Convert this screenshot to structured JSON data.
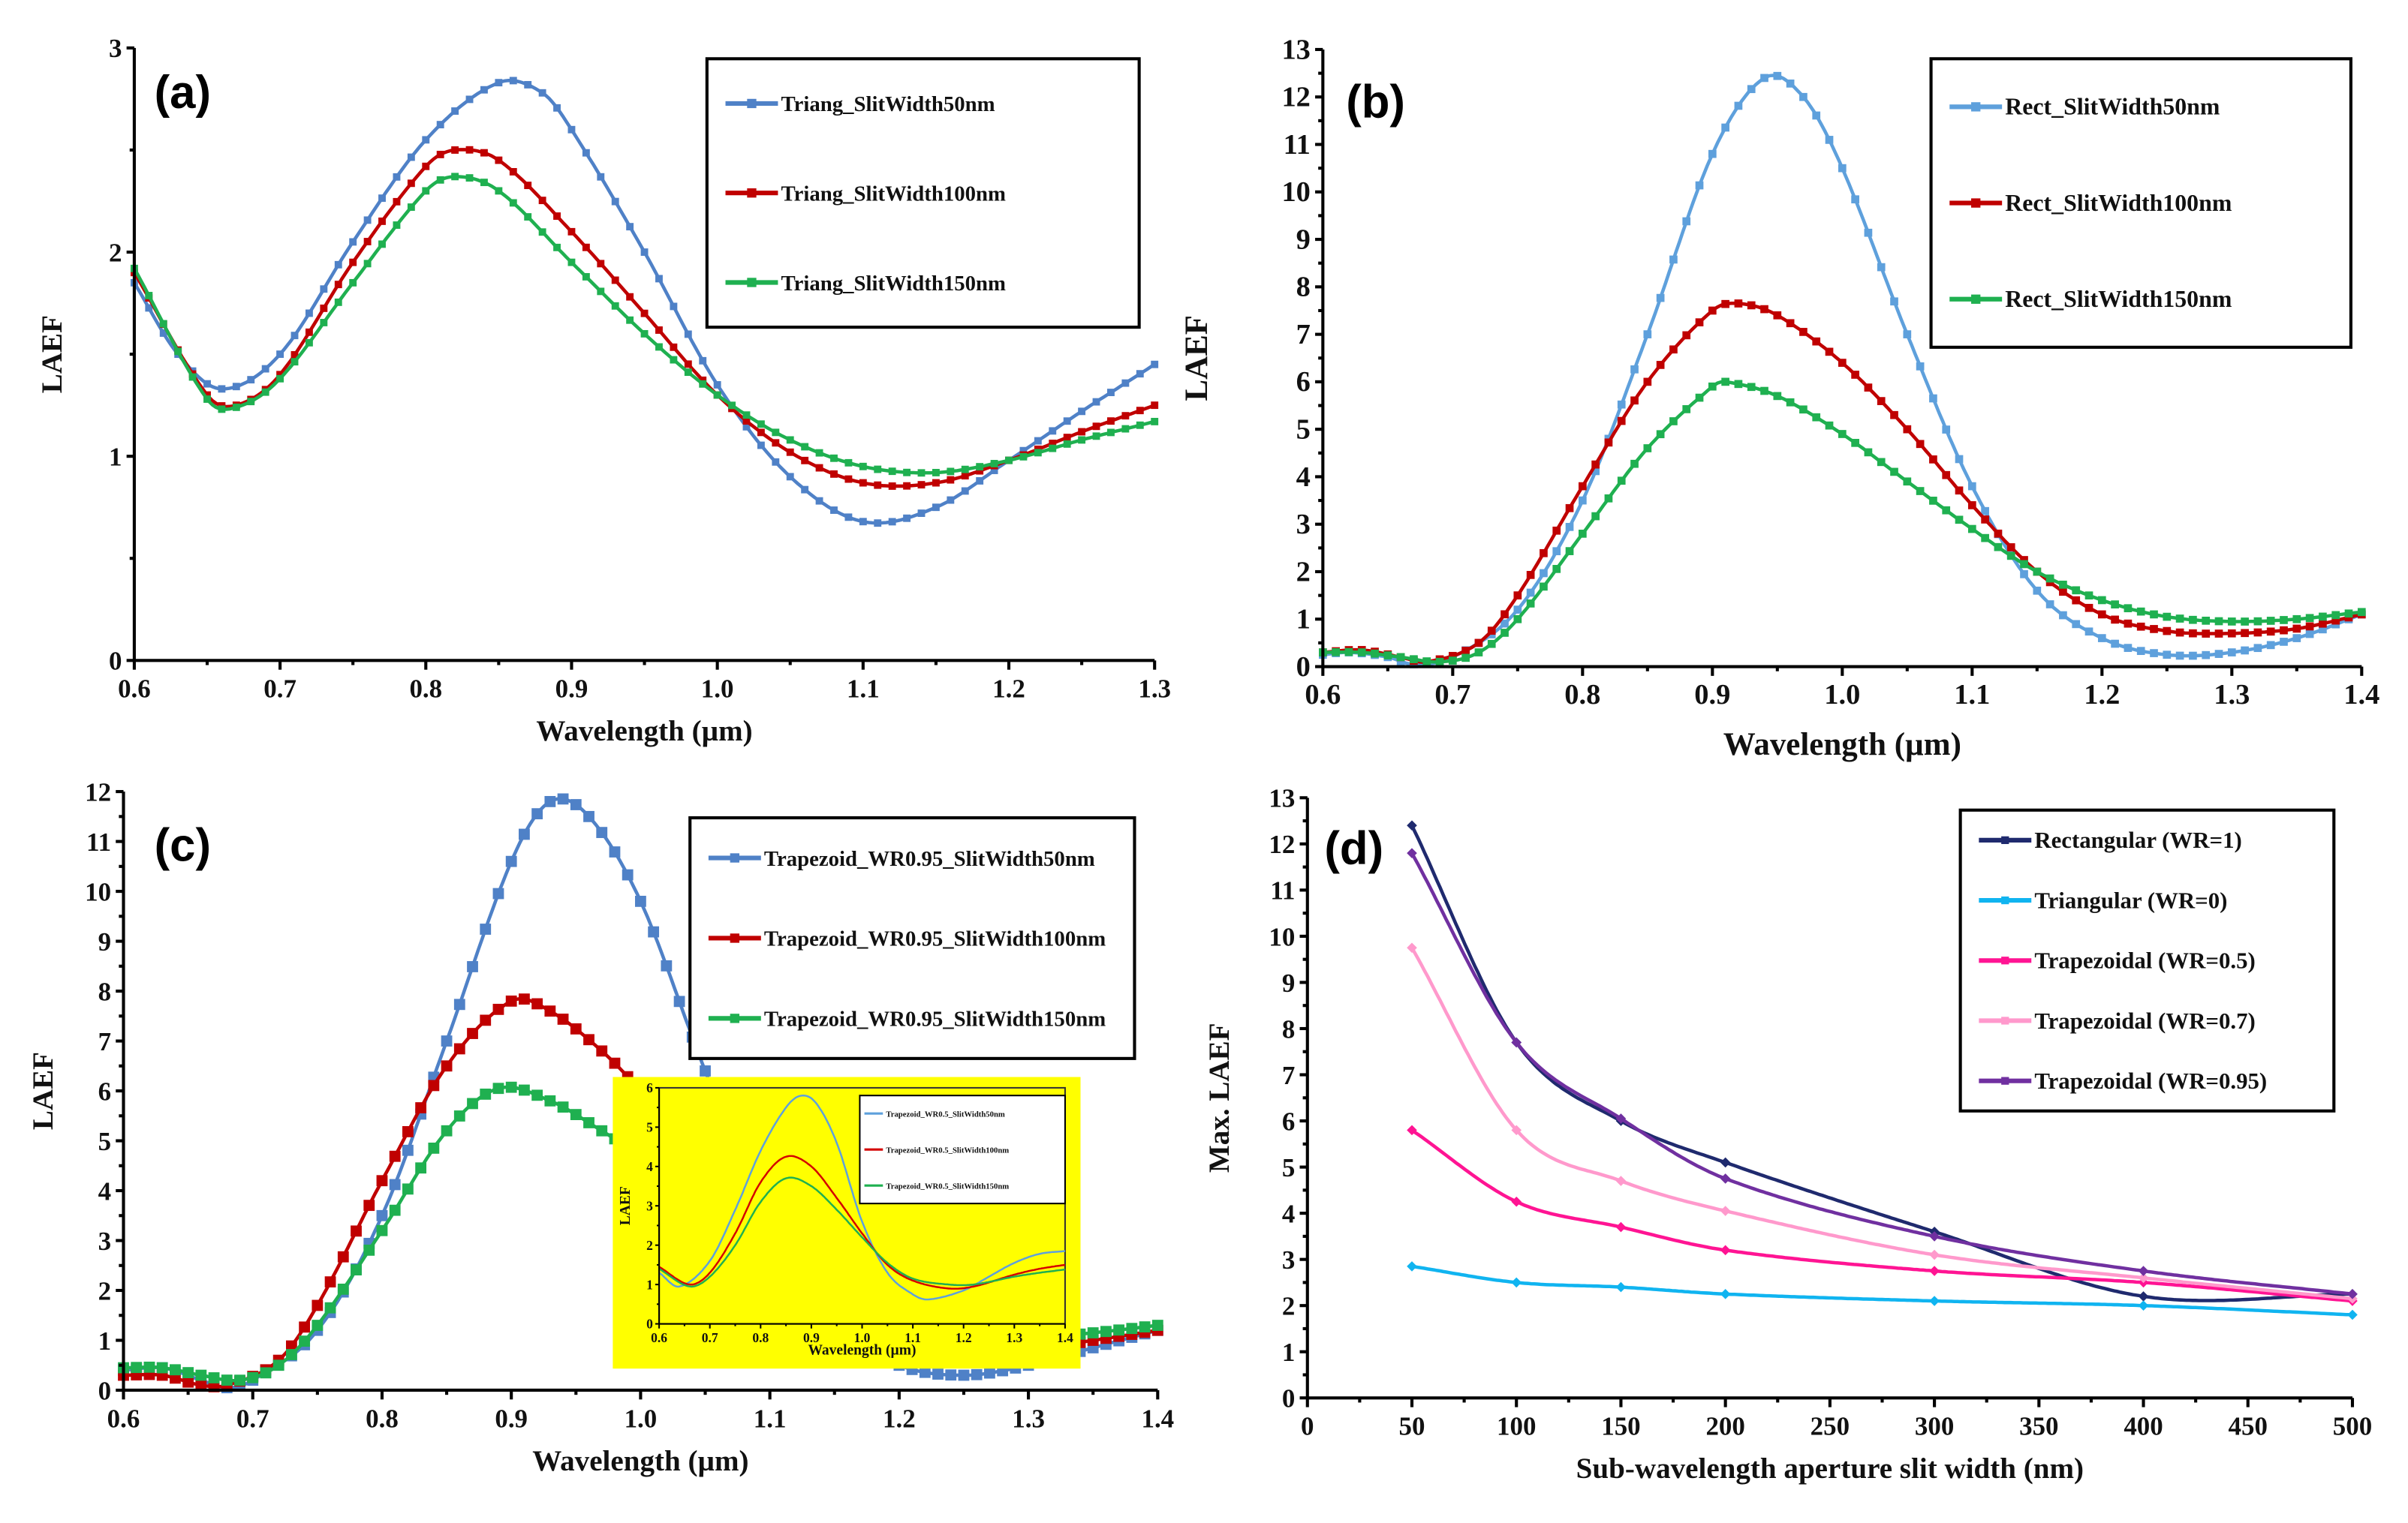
{
  "chart_data": [
    {
      "id": "a",
      "panel_label": "(a)",
      "type": "line",
      "xlabel": "Wavelength (µm)",
      "ylabel": "LAEF",
      "xlim": [
        0.6,
        1.3
      ],
      "ylim": [
        0,
        3
      ],
      "xticks": [
        "0.6",
        "0.7",
        "0.8",
        "0.9",
        "1.0",
        "1.1",
        "1.2",
        "1.3"
      ],
      "yticks": [
        "0",
        "1",
        "2",
        "3"
      ],
      "legend": "top-right",
      "marker": "square",
      "series": [
        {
          "name": "Triang_SlitWidth50nm",
          "color": "#4f81c7",
          "x": [
            0.6,
            0.63,
            0.66,
            0.7,
            0.75,
            0.8,
            0.85,
            0.88,
            0.9,
            0.95,
            1.0,
            1.05,
            1.1,
            1.15,
            1.2,
            1.25,
            1.3
          ],
          "y": [
            1.85,
            1.5,
            1.33,
            1.5,
            2.05,
            2.55,
            2.83,
            2.78,
            2.6,
            2.0,
            1.35,
            0.9,
            0.68,
            0.75,
            0.98,
            1.22,
            1.45
          ]
        },
        {
          "name": "Triang_SlitWidth100nm",
          "color": "#c00000",
          "x": [
            0.6,
            0.65,
            0.67,
            0.7,
            0.75,
            0.8,
            0.82,
            0.85,
            0.9,
            0.95,
            1.0,
            1.05,
            1.1,
            1.15,
            1.2,
            1.25,
            1.3
          ],
          "y": [
            1.9,
            1.3,
            1.25,
            1.4,
            1.95,
            2.42,
            2.5,
            2.45,
            2.1,
            1.7,
            1.3,
            1.02,
            0.87,
            0.87,
            0.98,
            1.12,
            1.25
          ]
        },
        {
          "name": "Triang_SlitWidth150nm",
          "color": "#1fb050",
          "x": [
            0.6,
            0.65,
            0.67,
            0.7,
            0.75,
            0.8,
            0.82,
            0.85,
            0.9,
            0.95,
            1.0,
            1.05,
            1.1,
            1.15,
            1.2,
            1.25,
            1.3
          ],
          "y": [
            1.92,
            1.28,
            1.24,
            1.38,
            1.85,
            2.3,
            2.37,
            2.3,
            1.95,
            1.6,
            1.3,
            1.08,
            0.95,
            0.92,
            0.98,
            1.08,
            1.17
          ]
        }
      ]
    },
    {
      "id": "b",
      "panel_label": "(b)",
      "type": "line",
      "xlabel": "Wavelength (µm)",
      "ylabel": "LAEF",
      "xlim": [
        0.6,
        1.4
      ],
      "ylim": [
        0,
        13
      ],
      "xticks": [
        "0.6",
        "0.7",
        "0.8",
        "0.9",
        "1.0",
        "1.1",
        "1.2",
        "1.3",
        "1.4"
      ],
      "yticks": [
        "0",
        "1",
        "2",
        "3",
        "4",
        "5",
        "6",
        "7",
        "8",
        "9",
        "10",
        "11",
        "12",
        "13"
      ],
      "legend": "top-right",
      "marker": "square",
      "series": [
        {
          "name": "Rect_SlitWidth50nm",
          "color": "#5ea0dc",
          "x": [
            0.6,
            0.62,
            0.65,
            0.67,
            0.7,
            0.75,
            0.8,
            0.85,
            0.9,
            0.94,
            0.97,
            1.0,
            1.05,
            1.1,
            1.15,
            1.2,
            1.25,
            1.3,
            1.35,
            1.4
          ],
          "y": [
            0.25,
            0.3,
            0.2,
            0.05,
            0.2,
            1.2,
            3.5,
            7.0,
            10.8,
            12.4,
            12.0,
            10.5,
            7.0,
            3.8,
            1.6,
            0.6,
            0.25,
            0.3,
            0.6,
            1.1
          ]
        },
        {
          "name": "Rect_SlitWidth100nm",
          "color": "#c00000",
          "x": [
            0.6,
            0.63,
            0.66,
            0.68,
            0.72,
            0.75,
            0.8,
            0.85,
            0.9,
            0.92,
            0.95,
            1.0,
            1.05,
            1.1,
            1.15,
            1.2,
            1.25,
            1.3,
            1.35,
            1.4
          ],
          "y": [
            0.3,
            0.35,
            0.2,
            0.1,
            0.5,
            1.5,
            3.8,
            6.0,
            7.5,
            7.65,
            7.4,
            6.4,
            5.0,
            3.4,
            2.0,
            1.1,
            0.75,
            0.7,
            0.8,
            1.1
          ]
        },
        {
          "name": "Rect_SlitWidth150nm",
          "color": "#1fb050",
          "x": [
            0.6,
            0.63,
            0.66,
            0.69,
            0.72,
            0.75,
            0.8,
            0.85,
            0.9,
            0.91,
            0.95,
            1.0,
            1.05,
            1.1,
            1.15,
            1.2,
            1.25,
            1.3,
            1.35,
            1.4
          ],
          "y": [
            0.3,
            0.3,
            0.2,
            0.1,
            0.3,
            1.0,
            2.8,
            4.6,
            5.9,
            6.0,
            5.7,
            4.9,
            3.9,
            2.9,
            2.0,
            1.4,
            1.05,
            0.95,
            1.0,
            1.15
          ]
        }
      ]
    },
    {
      "id": "c",
      "panel_label": "(c)",
      "type": "line",
      "xlabel": "Wavelength (µm)",
      "ylabel": "LAEF",
      "xlim": [
        0.6,
        1.4
      ],
      "ylim": [
        0,
        12
      ],
      "xticks": [
        "0.6",
        "0.7",
        "0.8",
        "0.9",
        "1.0",
        "1.1",
        "1.2",
        "1.3",
        "1.4"
      ],
      "yticks": [
        "0",
        "1",
        "2",
        "3",
        "4",
        "5",
        "6",
        "7",
        "8",
        "9",
        "10",
        "11",
        "12"
      ],
      "legend": "top-right",
      "marker": "square",
      "series": [
        {
          "name": "Trapezoid_WR0.95_SlitWidth50nm",
          "color": "#4f81c7",
          "x": [
            0.6,
            0.63,
            0.66,
            0.68,
            0.7,
            0.75,
            0.8,
            0.85,
            0.9,
            0.93,
            0.96,
            1.0,
            1.05,
            1.1,
            1.15,
            1.2,
            1.25,
            1.3,
            1.35,
            1.4
          ],
          "y": [
            0.4,
            0.45,
            0.2,
            0.05,
            0.2,
            1.2,
            3.5,
            7.0,
            10.6,
            11.8,
            11.5,
            9.8,
            6.4,
            3.3,
            1.3,
            0.5,
            0.3,
            0.5,
            0.85,
            1.2
          ]
        },
        {
          "name": "Trapezoid_WR0.95_SlitWidth100nm",
          "color": "#c00000",
          "x": [
            0.6,
            0.63,
            0.66,
            0.68,
            0.72,
            0.75,
            0.8,
            0.85,
            0.9,
            0.93,
            0.97,
            1.0,
            1.05,
            1.1,
            1.15,
            1.2,
            1.25,
            1.3,
            1.35,
            1.4
          ],
          "y": [
            0.3,
            0.3,
            0.1,
            0.1,
            0.6,
            1.7,
            4.2,
            6.5,
            7.8,
            7.6,
            6.8,
            6.0,
            4.5,
            3.0,
            1.8,
            1.1,
            0.8,
            0.8,
            1.0,
            1.2
          ]
        },
        {
          "name": "Trapezoid_WR0.95_SlitWidth150nm",
          "color": "#1fb050",
          "x": [
            0.6,
            0.63,
            0.66,
            0.69,
            0.72,
            0.75,
            0.8,
            0.85,
            0.89,
            0.93,
            0.97,
            1.0,
            1.05,
            1.1,
            1.15,
            1.2,
            1.25,
            1.3,
            1.35,
            1.4
          ],
          "y": [
            0.45,
            0.45,
            0.3,
            0.2,
            0.5,
            1.3,
            3.2,
            5.2,
            6.05,
            5.8,
            5.2,
            4.7,
            3.8,
            2.8,
            2.0,
            1.4,
            1.1,
            1.05,
            1.15,
            1.3
          ]
        }
      ],
      "inset": {
        "type": "line",
        "xlabel": "Wavelength (µm)",
        "ylabel": "LAEF",
        "xlim": [
          0.6,
          1.4
        ],
        "ylim": [
          0,
          6
        ],
        "xticks": [
          "0.6",
          "0.7",
          "0.8",
          "0.9",
          "1.0",
          "1.1",
          "1.2",
          "1.3",
          "1.4"
        ],
        "yticks": [
          "0",
          "1",
          "2",
          "3",
          "4",
          "5",
          "6"
        ],
        "legend": "top-right",
        "background": "#ffff00",
        "series": [
          {
            "name": "Trapezoid_WR0.5_SlitWidth50nm",
            "color": "#5ea0dc",
            "x": [
              0.6,
              0.64,
              0.7,
              0.75,
              0.8,
              0.85,
              0.88,
              0.91,
              0.95,
              1.0,
              1.05,
              1.1,
              1.13,
              1.2,
              1.25,
              1.3,
              1.35,
              1.4
            ],
            "y": [
              1.3,
              0.95,
              1.6,
              2.9,
              4.4,
              5.5,
              5.8,
              5.6,
              4.6,
              2.6,
              1.3,
              0.75,
              0.62,
              0.85,
              1.2,
              1.55,
              1.78,
              1.85
            ]
          },
          {
            "name": "Trapezoid_WR0.5_SlitWidth100nm",
            "color": "#d40000",
            "x": [
              0.6,
              0.66,
              0.7,
              0.75,
              0.8,
              0.85,
              0.9,
              0.95,
              1.0,
              1.05,
              1.1,
              1.17,
              1.22,
              1.3,
              1.35,
              1.4
            ],
            "y": [
              1.45,
              1.0,
              1.3,
              2.3,
              3.6,
              4.25,
              4.0,
              3.2,
              2.3,
              1.5,
              1.1,
              0.9,
              0.95,
              1.25,
              1.4,
              1.5
            ]
          },
          {
            "name": "Trapezoid_WR0.5_SlitWidth150nm",
            "color": "#1fb050",
            "x": [
              0.6,
              0.66,
              0.7,
              0.75,
              0.8,
              0.85,
              0.9,
              0.95,
              1.0,
              1.05,
              1.1,
              1.17,
              1.22,
              1.3,
              1.35,
              1.4
            ],
            "y": [
              1.4,
              0.95,
              1.2,
              2.0,
              3.1,
              3.7,
              3.5,
              2.9,
              2.2,
              1.55,
              1.15,
              1.0,
              1.0,
              1.2,
              1.3,
              1.38
            ]
          }
        ]
      }
    },
    {
      "id": "d",
      "panel_label": "(d)",
      "type": "line",
      "xlabel": "Sub-wavelength aperture slit width (nm)",
      "ylabel": "Max. LAEF",
      "xlim": [
        0,
        500
      ],
      "ylim": [
        0,
        13
      ],
      "xticks": [
        "0",
        "50",
        "100",
        "150",
        "200",
        "250",
        "300",
        "350",
        "400",
        "450",
        "500"
      ],
      "yticks": [
        "0",
        "1",
        "2",
        "3",
        "4",
        "5",
        "6",
        "7",
        "8",
        "9",
        "10",
        "11",
        "12",
        "13"
      ],
      "legend": "top-right",
      "marker": "diamond",
      "series": [
        {
          "name": "Rectangular (WR=1)",
          "color": "#1f2a6e",
          "x": [
            50,
            100,
            150,
            200,
            300,
            400,
            500
          ],
          "y": [
            12.4,
            7.7,
            6.0,
            5.1,
            3.6,
            2.2,
            2.25
          ]
        },
        {
          "name": "Triangular (WR=0)",
          "color": "#10b4f0",
          "x": [
            50,
            100,
            150,
            200,
            300,
            400,
            500
          ],
          "y": [
            2.85,
            2.5,
            2.4,
            2.25,
            2.1,
            2.0,
            1.8
          ]
        },
        {
          "name": "Trapezoidal (WR=0.5)",
          "color": "#ff1493",
          "x": [
            50,
            100,
            150,
            200,
            300,
            400,
            500
          ],
          "y": [
            5.8,
            4.25,
            3.7,
            3.2,
            2.75,
            2.5,
            2.1
          ]
        },
        {
          "name": "Trapezoidal (WR=0.7)",
          "color": "#ff99cc",
          "x": [
            50,
            100,
            150,
            200,
            300,
            400,
            500
          ],
          "y": [
            9.75,
            5.8,
            4.7,
            4.05,
            3.1,
            2.6,
            2.15
          ]
        },
        {
          "name": "Trapezoidal (WR=0.95)",
          "color": "#7030a0",
          "x": [
            50,
            100,
            150,
            200,
            300,
            400,
            500
          ],
          "y": [
            11.8,
            7.7,
            6.05,
            4.75,
            3.5,
            2.75,
            2.25
          ]
        }
      ]
    }
  ]
}
